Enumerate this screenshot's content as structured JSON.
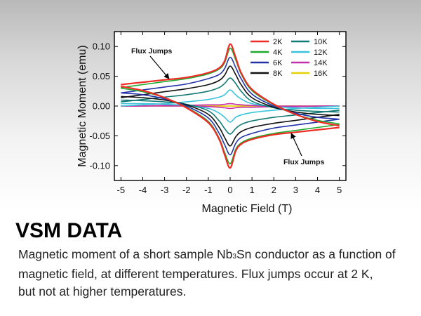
{
  "chart_data": {
    "type": "line",
    "xlabel": "Magnetic Field (T)",
    "ylabel": "Magnetic Moment (emu)",
    "xlim": [
      -5.3,
      5.3
    ],
    "ylim": [
      -0.125,
      0.125
    ],
    "xticks": [
      -5,
      -4,
      -3,
      -2,
      -1,
      0,
      1,
      2,
      3,
      4,
      5
    ],
    "xtick_labels": [
      "-5",
      "-4",
      "-3",
      "-2",
      "-1",
      "0",
      "1",
      "2",
      "3",
      "4",
      "5"
    ],
    "yticks": [
      0.1,
      0.05,
      0.0,
      -0.05,
      -0.1
    ],
    "ytick_labels": [
      "0.10",
      "0.05",
      "0.00",
      "-0.05",
      "-0.10"
    ],
    "legend_position": "top-right",
    "legend_columns": 2,
    "x": [
      -5,
      -4,
      -3,
      -2,
      -1,
      -0.5,
      -0.25,
      0,
      0.25,
      0.5,
      1,
      2,
      3,
      4,
      5
    ],
    "series": [
      {
        "name": "2K",
        "color": "#ee2b24",
        "descending": [
          0.036,
          0.04,
          0.044,
          0.048,
          0.056,
          0.064,
          0.076,
          0.104,
          0.082,
          0.056,
          0.028,
          0.003,
          -0.014,
          -0.026,
          -0.033
        ],
        "ascending": [
          0.033,
          0.026,
          0.014,
          -0.003,
          -0.028,
          -0.056,
          -0.082,
          -0.104,
          -0.076,
          -0.064,
          -0.056,
          -0.048,
          -0.044,
          -0.04,
          -0.036
        ]
      },
      {
        "name": "4K",
        "color": "#1faa2e",
        "descending": [
          0.031,
          0.036,
          0.041,
          0.046,
          0.054,
          0.062,
          0.073,
          0.097,
          0.078,
          0.054,
          0.026,
          0.002,
          -0.014,
          -0.024,
          -0.03
        ],
        "ascending": [
          0.03,
          0.024,
          0.014,
          -0.002,
          -0.026,
          -0.054,
          -0.078,
          -0.097,
          -0.073,
          -0.062,
          -0.054,
          -0.046,
          -0.041,
          -0.036,
          -0.031
        ]
      },
      {
        "name": "6K",
        "color": "#2233aa",
        "descending": [
          0.022,
          0.027,
          0.032,
          0.037,
          0.046,
          0.053,
          0.063,
          0.082,
          0.065,
          0.046,
          0.02,
          0.0,
          -0.012,
          -0.019,
          -0.022
        ],
        "ascending": [
          0.022,
          0.019,
          0.012,
          0.0,
          -0.02,
          -0.046,
          -0.065,
          -0.082,
          -0.063,
          -0.053,
          -0.046,
          -0.037,
          -0.032,
          -0.027,
          -0.022
        ]
      },
      {
        "name": "8K",
        "color": "#111111",
        "descending": [
          0.014,
          0.019,
          0.024,
          0.029,
          0.036,
          0.043,
          0.052,
          0.067,
          0.053,
          0.036,
          0.014,
          -0.002,
          -0.01,
          -0.014,
          -0.016
        ],
        "ascending": [
          0.016,
          0.014,
          0.01,
          0.002,
          -0.014,
          -0.036,
          -0.053,
          -0.067,
          -0.052,
          -0.043,
          -0.036,
          -0.029,
          -0.024,
          -0.019,
          -0.014
        ]
      },
      {
        "name": "10K",
        "color": "#127a74",
        "descending": [
          0.007,
          0.011,
          0.015,
          0.019,
          0.025,
          0.031,
          0.038,
          0.047,
          0.038,
          0.025,
          0.008,
          -0.003,
          -0.007,
          -0.009,
          -0.01
        ],
        "ascending": [
          0.01,
          0.009,
          0.007,
          0.003,
          -0.008,
          -0.025,
          -0.038,
          -0.047,
          -0.038,
          -0.031,
          -0.025,
          -0.019,
          -0.015,
          -0.011,
          -0.007
        ]
      },
      {
        "name": "12K",
        "color": "#3cc3dc",
        "descending": [
          0.0,
          0.002,
          0.004,
          0.007,
          0.011,
          0.015,
          0.019,
          0.027,
          0.019,
          0.012,
          0.004,
          -0.001,
          -0.003,
          -0.004,
          -0.004
        ],
        "ascending": [
          0.004,
          0.004,
          0.003,
          0.001,
          -0.004,
          -0.012,
          -0.019,
          -0.027,
          -0.019,
          -0.015,
          -0.011,
          -0.007,
          -0.004,
          -0.002,
          0.0
        ]
      },
      {
        "name": "14K",
        "color": "#c42ea8",
        "descending": [
          0.0,
          0.0,
          0.001,
          0.001,
          0.002,
          0.002,
          0.003,
          0.004,
          0.003,
          0.002,
          0.001,
          0.0,
          0.0,
          0.0,
          0.0
        ],
        "ascending": [
          0.0,
          0.0,
          0.0,
          0.0,
          -0.001,
          -0.002,
          -0.003,
          -0.004,
          -0.003,
          -0.002,
          -0.002,
          -0.001,
          -0.001,
          0.0,
          0.0
        ]
      },
      {
        "name": "16K",
        "color": "#e6d200",
        "descending": [
          0.0,
          0.0,
          0.0,
          0.0,
          0.0,
          0.0,
          0.0,
          0.0,
          0.0,
          0.0,
          0.0,
          0.0,
          0.0,
          0.0,
          0.0
        ],
        "ascending": [
          0.0,
          0.0,
          0.0,
          0.0,
          0.0,
          0.0,
          0.0,
          0.0,
          0.0,
          0.0,
          0.0,
          0.0,
          0.0,
          0.0,
          0.0
        ]
      }
    ],
    "annotations": [
      {
        "text": "Flux Jumps",
        "points_to": [
          -2.8,
          0.046
        ]
      },
      {
        "text": "Flux Jumps",
        "points_to": [
          2.8,
          -0.046
        ]
      }
    ]
  },
  "slide": {
    "title": "VSM DATA",
    "caption_part1": "Magnetic moment of a short sample Nb",
    "caption_sub": "3",
    "caption_part2": "Sn conductor as a function of",
    "caption_line2": "magnetic field, at different temperatures. Flux jumps occur at 2 K,",
    "caption_line3": "but not at higher temperatures."
  }
}
